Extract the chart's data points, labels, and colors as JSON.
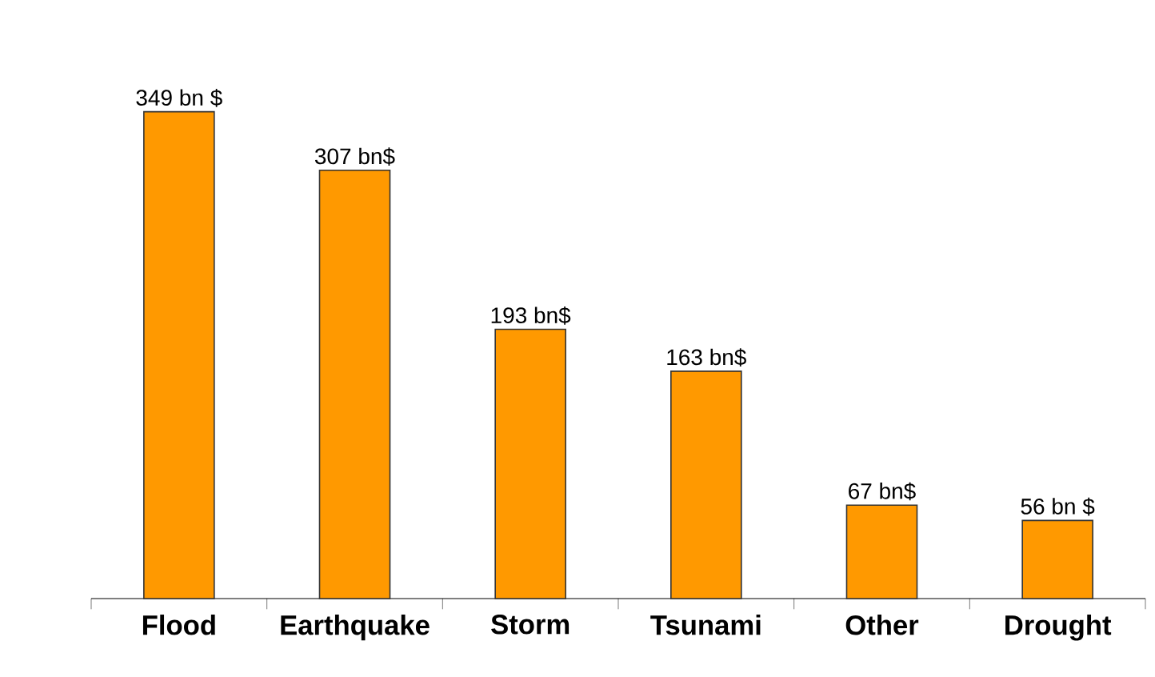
{
  "chart_data": {
    "type": "bar",
    "categories": [
      "Flood",
      "Earthquake",
      "Storm",
      "Tsunami",
      "Other",
      "Drought"
    ],
    "values": [
      349,
      307,
      193,
      163,
      67,
      56
    ],
    "value_labels": [
      "349 bn $",
      "307 bn$",
      "193 bn$",
      "163 bn$",
      "67 bn$",
      "56 bn $"
    ],
    "color": "#ff9900"
  }
}
